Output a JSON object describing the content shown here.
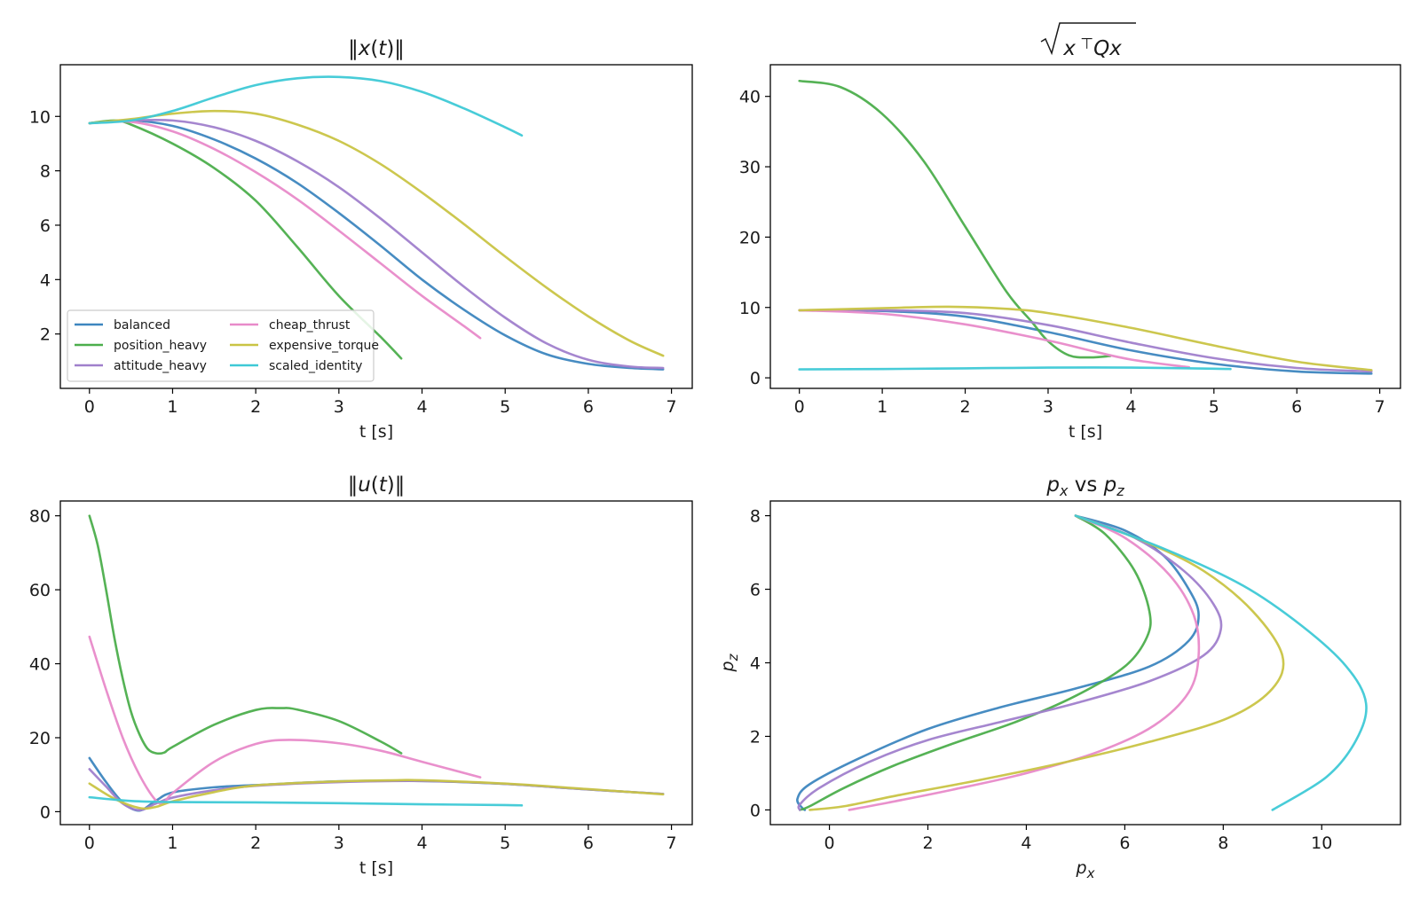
{
  "series_colors": {
    "balanced": "#3d86bf",
    "position_heavy": "#4cae4c",
    "attitude_heavy": "#a080cc",
    "cheap_thrust": "#e88ac9",
    "expensive_torque": "#c9c444",
    "scaled_identity": "#3ec9d6"
  },
  "legend": {
    "items": [
      "balanced",
      "position_heavy",
      "attitude_heavy",
      "cheap_thrust",
      "expensive_torque",
      "scaled_identity"
    ],
    "placement": "lower-left of first panel, two columns"
  },
  "chart_data": [
    {
      "type": "line",
      "title": "‖x(t)‖",
      "xlabel": "t [s]",
      "ylabel": "",
      "xlim": [
        -0.35,
        7.25
      ],
      "ylim": [
        0.0,
        11.9
      ],
      "xticks": [
        0,
        1,
        2,
        3,
        4,
        5,
        6,
        7
      ],
      "yticks": [
        2,
        4,
        6,
        8,
        10
      ],
      "series": [
        {
          "name": "balanced",
          "x": [
            0,
            0.5,
            1,
            1.5,
            2,
            2.5,
            3,
            3.5,
            4,
            4.5,
            5,
            5.5,
            6,
            6.5,
            6.9
          ],
          "y": [
            9.75,
            9.85,
            9.65,
            9.15,
            8.45,
            7.55,
            6.45,
            5.25,
            4.0,
            2.9,
            1.95,
            1.25,
            0.9,
            0.75,
            0.7
          ]
        },
        {
          "name": "position_heavy",
          "x": [
            0,
            0.3,
            0.5,
            1,
            1.5,
            2,
            2.5,
            3,
            3.5,
            3.75
          ],
          "y": [
            9.75,
            9.85,
            9.7,
            9.0,
            8.1,
            6.9,
            5.2,
            3.4,
            1.9,
            1.1
          ]
        },
        {
          "name": "attitude_heavy",
          "x": [
            0,
            0.5,
            1,
            1.5,
            2,
            2.5,
            3,
            3.5,
            4,
            4.5,
            5,
            5.5,
            6,
            6.5,
            6.9
          ],
          "y": [
            9.75,
            9.85,
            9.85,
            9.6,
            9.1,
            8.35,
            7.4,
            6.25,
            5.0,
            3.75,
            2.6,
            1.65,
            1.05,
            0.8,
            0.75
          ]
        },
        {
          "name": "cheap_thrust",
          "x": [
            0,
            0.5,
            1,
            1.5,
            2,
            2.5,
            3,
            3.5,
            4,
            4.5,
            4.7
          ],
          "y": [
            9.75,
            9.8,
            9.45,
            8.8,
            7.95,
            6.95,
            5.8,
            4.6,
            3.4,
            2.3,
            1.85
          ]
        },
        {
          "name": "expensive_torque",
          "x": [
            0,
            0.5,
            1,
            1.5,
            2,
            2.5,
            3,
            3.5,
            4,
            4.5,
            5,
            5.5,
            6,
            6.5,
            6.9
          ],
          "y": [
            9.75,
            9.9,
            10.1,
            10.2,
            10.1,
            9.7,
            9.1,
            8.25,
            7.2,
            6.05,
            4.85,
            3.7,
            2.65,
            1.75,
            1.2
          ]
        },
        {
          "name": "scaled_identity",
          "x": [
            0,
            0.5,
            1,
            1.5,
            2,
            2.5,
            3,
            3.5,
            4,
            4.5,
            5,
            5.2
          ],
          "y": [
            9.75,
            9.85,
            10.2,
            10.7,
            11.15,
            11.4,
            11.45,
            11.3,
            10.9,
            10.3,
            9.6,
            9.3
          ]
        }
      ]
    },
    {
      "type": "line",
      "title": "√x⊤Qx",
      "xlabel": "t [s]",
      "ylabel": "",
      "xlim": [
        -0.35,
        7.25
      ],
      "ylim": [
        -1.5,
        44.5
      ],
      "xticks": [
        0,
        1,
        2,
        3,
        4,
        5,
        6,
        7
      ],
      "yticks": [
        0,
        10,
        20,
        30,
        40
      ],
      "series": [
        {
          "name": "balanced",
          "x": [
            0,
            1,
            2,
            3,
            4,
            5,
            6,
            6.9
          ],
          "y": [
            9.6,
            9.5,
            8.7,
            6.5,
            3.9,
            2.0,
            0.9,
            0.6
          ]
        },
        {
          "name": "position_heavy",
          "x": [
            0,
            0.5,
            1,
            1.5,
            2,
            2.5,
            2.8,
            3,
            3.25,
            3.5,
            3.75
          ],
          "y": [
            42.2,
            41.3,
            37.5,
            30.8,
            21.5,
            12.2,
            8.0,
            5.2,
            3.2,
            2.9,
            3.1
          ]
        },
        {
          "name": "attitude_heavy",
          "x": [
            0,
            1,
            2,
            3,
            4,
            5,
            6,
            6.9
          ],
          "y": [
            9.6,
            9.6,
            9.2,
            7.5,
            5.0,
            2.8,
            1.4,
            0.9
          ]
        },
        {
          "name": "cheap_thrust",
          "x": [
            0,
            1,
            2,
            3,
            3.5,
            4,
            4.7
          ],
          "y": [
            9.6,
            9.1,
            7.6,
            5.3,
            3.9,
            2.6,
            1.5
          ]
        },
        {
          "name": "expensive_torque",
          "x": [
            0,
            1,
            1.8,
            2.5,
            3,
            4,
            5,
            6,
            6.9
          ],
          "y": [
            9.6,
            9.9,
            10.1,
            9.8,
            9.2,
            7.1,
            4.6,
            2.3,
            1.1
          ]
        },
        {
          "name": "scaled_identity",
          "x": [
            0,
            1,
            2,
            3,
            4,
            5,
            5.2
          ],
          "y": [
            1.2,
            1.25,
            1.35,
            1.45,
            1.45,
            1.3,
            1.25
          ]
        }
      ]
    },
    {
      "type": "line",
      "title": "‖u(t)‖",
      "xlabel": "t [s]",
      "ylabel": "",
      "xlim": [
        -0.35,
        7.25
      ],
      "ylim": [
        -3.5,
        84.0
      ],
      "xticks": [
        0,
        1,
        2,
        3,
        4,
        5,
        6,
        7
      ],
      "yticks": [
        0,
        20,
        40,
        60,
        80
      ],
      "series": [
        {
          "name": "balanced",
          "x": [
            0,
            0.2,
            0.4,
            0.6,
            0.8,
            1,
            1.5,
            2,
            3,
            4,
            5,
            6,
            6.9
          ],
          "y": [
            14.5,
            8.0,
            2.5,
            0.3,
            3.0,
            5.2,
            6.6,
            7.2,
            8.2,
            8.3,
            7.5,
            6.0,
            4.8
          ]
        },
        {
          "name": "position_heavy",
          "x": [
            0,
            0.1,
            0.2,
            0.3,
            0.4,
            0.5,
            0.6,
            0.7,
            0.8,
            0.9,
            1,
            1.5,
            2,
            2.3,
            2.5,
            3,
            3.5,
            3.75
          ],
          "y": [
            80,
            72,
            60,
            47,
            36,
            27,
            21,
            17,
            15.8,
            16.0,
            17.5,
            23.5,
            27.5,
            28.0,
            27.6,
            24.5,
            19,
            15.8
          ]
        },
        {
          "name": "attitude_heavy",
          "x": [
            0,
            0.2,
            0.4,
            0.6,
            0.8,
            1,
            1.5,
            2,
            3,
            4,
            5,
            6,
            6.9
          ],
          "y": [
            11.5,
            6.8,
            2.2,
            0.4,
            2.2,
            3.8,
            5.8,
            7.0,
            8.0,
            8.3,
            7.5,
            6.0,
            4.8
          ]
        },
        {
          "name": "cheap_thrust",
          "x": [
            0,
            0.2,
            0.4,
            0.6,
            0.8,
            0.9,
            1,
            1.5,
            2,
            2.4,
            3,
            3.5,
            4,
            4.7
          ],
          "y": [
            47.3,
            33,
            20,
            10,
            3.0,
            2.5,
            5.0,
            13.5,
            18.3,
            19.4,
            18.5,
            16.5,
            13.5,
            9.3
          ]
        },
        {
          "name": "expensive_torque",
          "x": [
            0,
            0.3,
            0.6,
            0.8,
            1,
            1.5,
            2,
            3,
            3.7,
            4,
            5,
            6,
            6.9
          ],
          "y": [
            7.6,
            3.5,
            1.0,
            1.3,
            2.8,
            5.3,
            7.1,
            8.2,
            8.5,
            8.5,
            7.6,
            6.1,
            4.7
          ]
        },
        {
          "name": "scaled_identity",
          "x": [
            0,
            0.5,
            1,
            2,
            3,
            4,
            5,
            5.2
          ],
          "y": [
            3.9,
            2.9,
            2.6,
            2.5,
            2.3,
            2.0,
            1.8,
            1.7
          ]
        }
      ]
    },
    {
      "type": "line",
      "title": "px vs pz",
      "xlabel": "px",
      "ylabel": "pz",
      "xlim": [
        -1.2,
        11.6
      ],
      "ylim": [
        -0.4,
        8.4
      ],
      "xticks": [
        0,
        2,
        4,
        6,
        8,
        10
      ],
      "yticks": [
        0,
        2,
        4,
        6,
        8
      ],
      "series": [
        {
          "name": "balanced",
          "x": [
            5.0,
            6.0,
            6.8,
            7.3,
            7.5,
            7.3,
            6.5,
            5.0,
            3.5,
            2.0,
            0.6,
            -0.4,
            -0.65,
            -0.55,
            -0.5
          ],
          "y": [
            8.0,
            7.6,
            6.9,
            6.0,
            5.3,
            4.6,
            3.9,
            3.3,
            2.8,
            2.2,
            1.4,
            0.7,
            0.3,
            0.05,
            0.0
          ]
        },
        {
          "name": "position_heavy",
          "x": [
            5.0,
            5.6,
            6.2,
            6.5,
            6.45,
            6.0,
            5.0,
            3.8,
            2.5,
            1.3,
            0.3,
            -0.4,
            -0.6
          ],
          "y": [
            8.0,
            7.5,
            6.5,
            5.4,
            4.7,
            3.9,
            3.1,
            2.4,
            1.8,
            1.2,
            0.6,
            0.1,
            0.0
          ]
        },
        {
          "name": "attitude_heavy",
          "x": [
            5.0,
            6.2,
            7.2,
            7.8,
            7.95,
            7.6,
            6.5,
            5.0,
            3.5,
            2.0,
            0.8,
            -0.2,
            -0.6,
            -0.6
          ],
          "y": [
            8.0,
            7.4,
            6.5,
            5.6,
            4.9,
            4.2,
            3.5,
            2.9,
            2.4,
            1.9,
            1.3,
            0.6,
            0.15,
            0.0
          ]
        },
        {
          "name": "cheap_thrust",
          "x": [
            5.0,
            6.0,
            6.9,
            7.4,
            7.5,
            7.3,
            6.6,
            5.5,
            4.0,
            2.5,
            1.2,
            0.4
          ],
          "y": [
            8.0,
            7.4,
            6.4,
            5.3,
            4.2,
            3.2,
            2.3,
            1.6,
            1.0,
            0.55,
            0.2,
            0.0
          ]
        },
        {
          "name": "expensive_torque",
          "x": [
            5.0,
            6.4,
            7.6,
            8.6,
            9.2,
            9.0,
            8.1,
            6.5,
            4.8,
            3.0,
            1.4,
            0.3,
            -0.4
          ],
          "y": [
            8.0,
            7.3,
            6.5,
            5.4,
            4.2,
            3.3,
            2.5,
            1.85,
            1.3,
            0.8,
            0.4,
            0.1,
            0.0
          ]
        },
        {
          "name": "scaled_identity",
          "x": [
            5.0,
            6.8,
            8.4,
            9.6,
            10.5,
            10.9,
            10.7,
            10.1,
            9.0
          ],
          "y": [
            8.0,
            7.1,
            6.1,
            5.0,
            3.9,
            2.9,
            1.9,
            0.9,
            0.0
          ]
        }
      ]
    }
  ]
}
